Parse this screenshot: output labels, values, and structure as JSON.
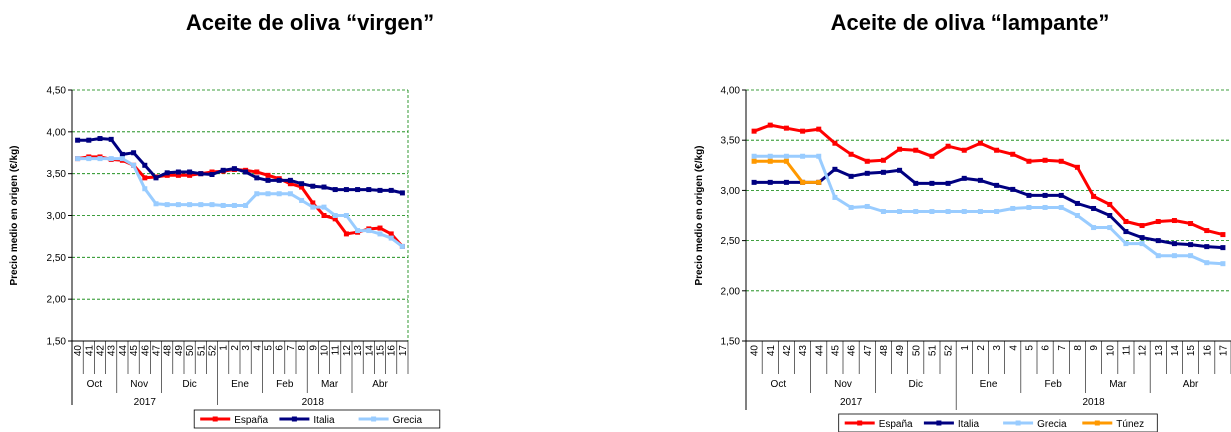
{
  "chart_data": [
    {
      "type": "line",
      "title": "Aceite de oliva “virgen”",
      "ylabel": "Precio medio en origen (€/kg)",
      "ylim": [
        1.5,
        4.5
      ],
      "yticks": [
        "1,50",
        "2,00",
        "2,50",
        "3,00",
        "3,50",
        "4,00",
        "4,50"
      ],
      "weeks": [
        "40",
        "41",
        "42",
        "43",
        "44",
        "45",
        "46",
        "47",
        "48",
        "49",
        "50",
        "51",
        "52",
        "1",
        "2",
        "3",
        "4",
        "5",
        "6",
        "7",
        "8",
        "9",
        "10",
        "11",
        "12",
        "13",
        "14",
        "15",
        "16",
        "17"
      ],
      "months": [
        {
          "label": "Oct",
          "from": 0,
          "to": 4
        },
        {
          "label": "Nov",
          "from": 4,
          "to": 8
        },
        {
          "label": "Dic",
          "from": 8,
          "to": 13
        },
        {
          "label": "Ene",
          "from": 13,
          "to": 17
        },
        {
          "label": "Feb",
          "from": 17,
          "to": 21
        },
        {
          "label": "Mar",
          "from": 21,
          "to": 25
        },
        {
          "label": "Abr",
          "from": 25,
          "to": 30
        }
      ],
      "years": [
        {
          "label": "2017",
          "from": 0,
          "to": 13
        },
        {
          "label": "2018",
          "from": 13,
          "to": 30
        }
      ],
      "legend_position": "bottom",
      "series": [
        {
          "name": "España",
          "color": "#ff0000",
          "values": [
            3.68,
            3.7,
            3.7,
            3.67,
            3.66,
            3.6,
            3.45,
            3.46,
            3.48,
            3.48,
            3.48,
            3.5,
            3.52,
            3.53,
            3.55,
            3.54,
            3.52,
            3.48,
            3.44,
            3.38,
            3.34,
            3.15,
            3.0,
            2.96,
            2.78,
            2.8,
            2.84,
            2.85,
            2.78,
            2.63
          ]
        },
        {
          "name": "Italia",
          "color": "#000080",
          "values": [
            3.9,
            3.9,
            3.92,
            3.91,
            3.73,
            3.75,
            3.6,
            3.45,
            3.51,
            3.52,
            3.52,
            3.5,
            3.49,
            3.54,
            3.56,
            3.52,
            3.45,
            3.42,
            3.42,
            3.42,
            3.38,
            3.35,
            3.34,
            3.31,
            3.31,
            3.31,
            3.31,
            3.3,
            3.3,
            3.27
          ]
        },
        {
          "name": "Grecia",
          "color": "#99ccff",
          "values": [
            3.68,
            3.68,
            3.68,
            3.68,
            3.68,
            3.6,
            3.32,
            3.14,
            3.13,
            3.13,
            3.13,
            3.13,
            3.13,
            3.12,
            3.12,
            3.12,
            3.26,
            3.26,
            3.26,
            3.26,
            3.18,
            3.1,
            3.1,
            3.0,
            3.0,
            2.82,
            2.82,
            2.78,
            2.73,
            2.63
          ]
        }
      ]
    },
    {
      "type": "line",
      "title": "Aceite de oliva “lampante”",
      "ylabel": "Precio medio en origen (€/kg)",
      "ylim": [
        1.5,
        4.0
      ],
      "yticks": [
        "1,50",
        "2,00",
        "2,50",
        "3,00",
        "3,50",
        "4,00"
      ],
      "weeks": [
        "40",
        "41",
        "42",
        "43",
        "44",
        "45",
        "46",
        "47",
        "48",
        "49",
        "50",
        "51",
        "52",
        "1",
        "2",
        "3",
        "4",
        "5",
        "6",
        "7",
        "8",
        "9",
        "10",
        "11",
        "12",
        "13",
        "14",
        "15",
        "16",
        "17"
      ],
      "months": [
        {
          "label": "Oct",
          "from": 0,
          "to": 4
        },
        {
          "label": "Nov",
          "from": 4,
          "to": 8
        },
        {
          "label": "Dic",
          "from": 8,
          "to": 13
        },
        {
          "label": "Ene",
          "from": 13,
          "to": 17
        },
        {
          "label": "Feb",
          "from": 17,
          "to": 21
        },
        {
          "label": "Mar",
          "from": 21,
          "to": 25
        },
        {
          "label": "Abr",
          "from": 25,
          "to": 30
        }
      ],
      "years": [
        {
          "label": "2017",
          "from": 0,
          "to": 13
        },
        {
          "label": "2018",
          "from": 13,
          "to": 30
        }
      ],
      "legend_position": "bottom",
      "series": [
        {
          "name": "España",
          "color": "#ff0000",
          "values": [
            3.59,
            3.65,
            3.62,
            3.59,
            3.61,
            3.47,
            3.36,
            3.29,
            3.3,
            3.41,
            3.4,
            3.34,
            3.44,
            3.4,
            3.47,
            3.4,
            3.36,
            3.29,
            3.3,
            3.29,
            3.23,
            2.94,
            2.86,
            2.69,
            2.65,
            2.69,
            2.7,
            2.67,
            2.6,
            2.56
          ]
        },
        {
          "name": "Italia",
          "color": "#000080",
          "values": [
            3.08,
            3.08,
            3.08,
            3.08,
            3.08,
            3.21,
            3.14,
            3.17,
            3.18,
            3.2,
            3.07,
            3.07,
            3.07,
            3.12,
            3.1,
            3.05,
            3.01,
            2.95,
            2.95,
            2.95,
            2.87,
            2.82,
            2.75,
            2.59,
            2.53,
            2.5,
            2.47,
            2.46,
            2.44,
            2.43
          ]
        },
        {
          "name": "Grecia",
          "color": "#99ccff",
          "values": [
            3.34,
            3.34,
            3.34,
            3.34,
            3.34,
            2.93,
            2.83,
            2.84,
            2.79,
            2.79,
            2.79,
            2.79,
            2.79,
            2.79,
            2.79,
            2.79,
            2.82,
            2.83,
            2.83,
            2.83,
            2.75,
            2.63,
            2.63,
            2.47,
            2.47,
            2.35,
            2.35,
            2.35,
            2.28,
            2.27
          ]
        },
        {
          "name": "Túnez",
          "color": "#ff9900",
          "values": [
            3.29,
            3.29,
            3.29,
            3.08,
            3.08,
            null,
            null,
            null,
            null,
            null,
            null,
            null,
            null,
            null,
            null,
            null,
            null,
            null,
            null,
            null,
            null,
            null,
            null,
            null,
            null,
            null,
            null,
            null,
            null,
            null
          ]
        }
      ]
    }
  ]
}
